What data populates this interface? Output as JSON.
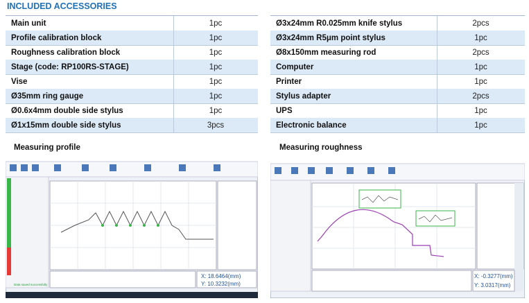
{
  "header": {
    "title": "INCLUDED ACCESSORIES"
  },
  "tables": [
    {
      "rows": [
        [
          "Main unit",
          "1pc"
        ],
        [
          "Profile calibration block",
          "1pc"
        ],
        [
          "Roughness calibration block",
          "1pc"
        ],
        [
          "Stage (code: RP100RS-STAGE)",
          "1pc"
        ],
        [
          "Vise",
          "1pc"
        ],
        [
          "Ø35mm ring gauge",
          "1pc"
        ],
        [
          "Ø0.6x4mm double side stylus",
          "1pc"
        ],
        [
          "Ø1x15mm double side stylus",
          "3pcs"
        ]
      ]
    },
    {
      "rows": [
        [
          "Ø3x24mm  R0.025mm knife stylus",
          "2pcs"
        ],
        [
          "Ø3x24mm  R5μm point stylus",
          "1pc"
        ],
        [
          "Ø8x150mm measuring rod",
          "2pcs"
        ],
        [
          "Computer",
          "1pc"
        ],
        [
          "Printer",
          "1pc"
        ],
        [
          "Stylus adapter",
          "2pcs"
        ],
        [
          "UPS",
          "1pc"
        ],
        [
          "Electronic balance",
          "1pc"
        ]
      ]
    }
  ],
  "screenshots": [
    {
      "caption": "Measuring profile",
      "status": "Data saved successfully",
      "readout": [
        "X: 18.6464(mm)",
        "Y: 10.3232(mm)"
      ]
    },
    {
      "caption": "Measuring roughness",
      "readout": [
        "X: -0.3277(mm)",
        "Y: 3.0317(mm)"
      ]
    }
  ]
}
